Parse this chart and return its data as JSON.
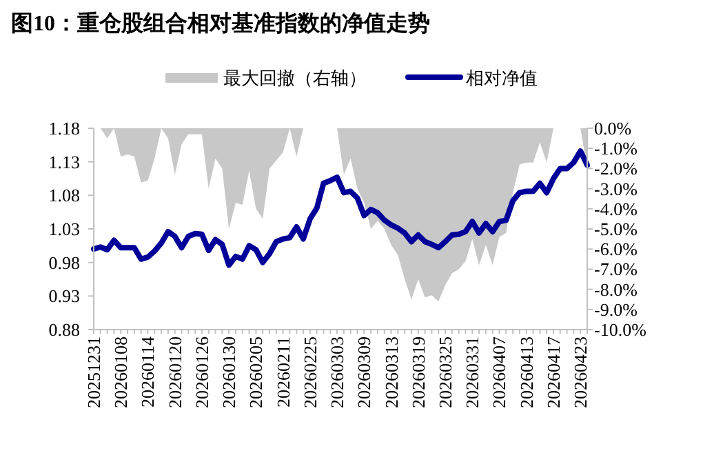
{
  "chart_data": {
    "type": "line",
    "title": "图10：重仓股组合相对基准指数的净值走势",
    "categories": [
      "20251231",
      null,
      null,
      null,
      "20260108",
      null,
      null,
      null,
      "20260114",
      null,
      null,
      null,
      "20260120",
      null,
      null,
      null,
      "20260126",
      null,
      null,
      null,
      "20260130",
      null,
      null,
      null,
      "20260205",
      null,
      null,
      null,
      "20260211",
      null,
      null,
      null,
      "20260225",
      null,
      null,
      null,
      "20260303",
      null,
      null,
      null,
      "20260309",
      null,
      null,
      null,
      "20260313",
      null,
      null,
      null,
      "20260319",
      null,
      null,
      null,
      "20260325",
      null,
      null,
      null,
      "20260331",
      null,
      null,
      null,
      "20260407",
      null,
      null,
      null,
      "20260413",
      null,
      null,
      null,
      "20260417",
      null,
      null,
      null,
      "20260423",
      null
    ],
    "series": [
      {
        "name": "最大回撤（右轴）",
        "type": "area",
        "axis": "y2",
        "color": "#c8c8c8",
        "values": [
          0,
          0,
          -0.5,
          0,
          -1.4,
          -1.3,
          -1.4,
          -2.7,
          -2.6,
          -1.5,
          0,
          -0.5,
          -2.3,
          -0.8,
          -0.3,
          -0.3,
          -0.3,
          -3.0,
          -1.5,
          -2.0,
          -5.0,
          -3.7,
          -3.8,
          -2.1,
          -4.0,
          -4.5,
          -2.0,
          -1.6,
          -1.2,
          0,
          -1.4,
          0,
          0,
          0,
          0,
          0,
          0,
          -2.3,
          -1.5,
          -3.0,
          -3.7,
          -5.0,
          -4.6,
          -5.0,
          -5.8,
          -6.3,
          -7.5,
          -8.5,
          -7.5,
          -8.4,
          -8.3,
          -8.6,
          -7.8,
          -7.2,
          -7.0,
          -6.6,
          -5.5,
          -6.8,
          -5.8,
          -6.8,
          -5.4,
          -5.2,
          -3.2,
          -1.8,
          -1.7,
          -1.7,
          -0.7,
          -1.7,
          0,
          0,
          0,
          0,
          0,
          -2.0
        ]
      },
      {
        "name": "相对净值",
        "color": "#000099",
        "values": [
          1.0,
          1.003,
          0.999,
          1.013,
          1.002,
          1.002,
          1.002,
          0.985,
          0.988,
          0.997,
          1.009,
          1.026,
          1.019,
          1.002,
          1.019,
          1.023,
          1.022,
          0.998,
          1.014,
          1.007,
          0.976,
          0.989,
          0.985,
          1.005,
          0.999,
          0.98,
          0.993,
          1.011,
          1.015,
          1.017,
          1.033,
          1.015,
          1.045,
          1.061,
          1.098,
          1.102,
          1.107,
          1.084,
          1.086,
          1.076,
          1.05,
          1.059,
          1.054,
          1.043,
          1.036,
          1.031,
          1.024,
          1.011,
          1.021,
          1.011,
          1.007,
          1.002,
          1.011,
          1.021,
          1.022,
          1.026,
          1.041,
          1.024,
          1.038,
          1.026,
          1.041,
          1.043,
          1.072,
          1.084,
          1.086,
          1.086,
          1.098,
          1.084,
          1.105,
          1.12,
          1.12,
          1.129,
          1.146,
          1.125
        ]
      }
    ],
    "ylim": [
      0.88,
      1.18
    ],
    "yticks": [
      0.88,
      0.93,
      0.98,
      1.03,
      1.08,
      1.13,
      1.18
    ],
    "y2lim": [
      -10,
      0
    ],
    "y2ticks": [
      {
        "value": 0,
        "label": "0.0%"
      },
      {
        "value": -1,
        "label": "-1.0%"
      },
      {
        "value": -2,
        "label": "-2.0%"
      },
      {
        "value": -3,
        "label": "-3.0%"
      },
      {
        "value": -4,
        "label": "-4.0%"
      },
      {
        "value": -5,
        "label": "-5.0%"
      },
      {
        "value": -6,
        "label": "-6.0%"
      },
      {
        "value": -7,
        "label": "-7.0%"
      },
      {
        "value": -8,
        "label": "-8.0%"
      },
      {
        "value": -9,
        "label": "-9.0%"
      },
      {
        "value": -10,
        "label": "-10.0%"
      }
    ],
    "legend": "top",
    "grid": false
  }
}
